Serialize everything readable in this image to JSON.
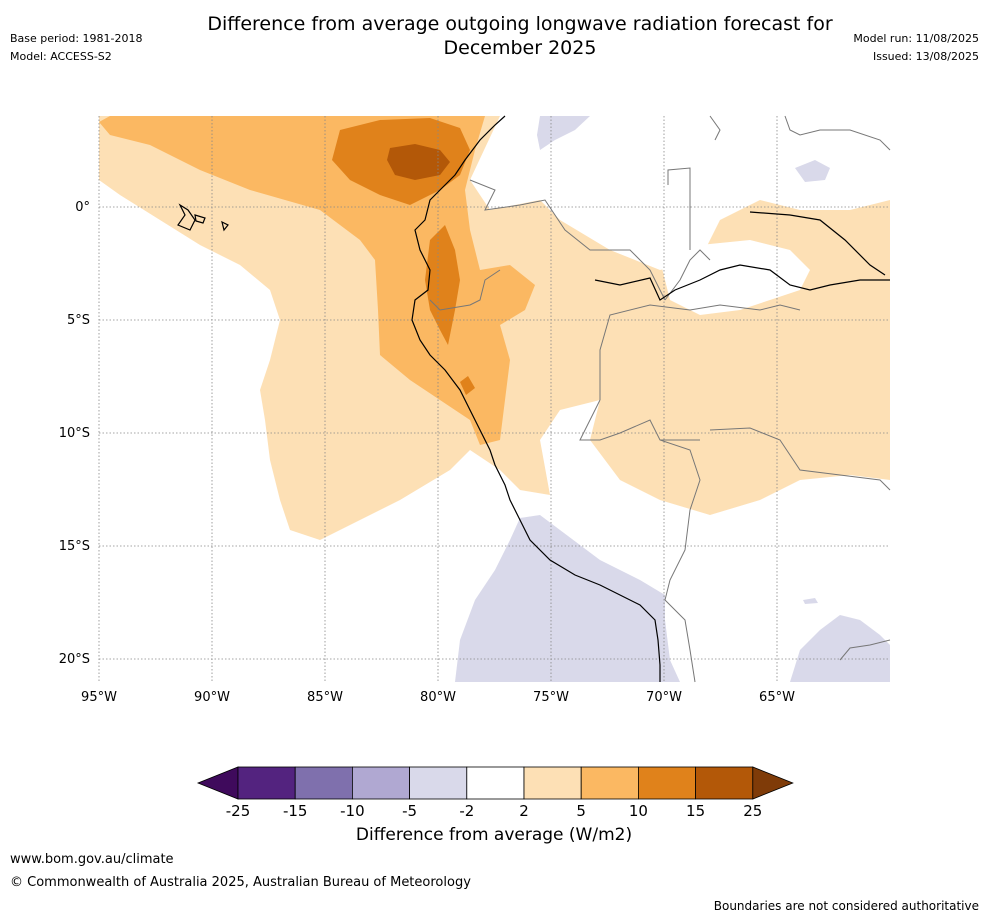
{
  "title": "Difference from average outgoing longwave radiation forecast for December 2025",
  "meta_left": {
    "base_period": "Base period: 1981-2018",
    "model": "Model: ACCESS-S2"
  },
  "meta_right": {
    "model_run": "Model run: 11/08/2025",
    "issued": "Issued: 13/08/2025"
  },
  "map": {
    "lon_labels": [
      "95°W",
      "90°W",
      "85°W",
      "80°W",
      "75°W",
      "70°W",
      "65°W"
    ],
    "lat_labels": [
      "0°",
      "5°S",
      "10°S",
      "15°S",
      "20°S"
    ],
    "extent": {
      "lon_min": -95,
      "lon_max": -60,
      "lat_min": -21,
      "lat_max": 4
    },
    "gridlines": true
  },
  "colorbar": {
    "title": "Difference from average (W/m2)",
    "tick_labels": [
      "-25",
      "-15",
      "-10",
      "-5",
      "-2",
      "2",
      "5",
      "10",
      "15",
      "25"
    ],
    "colors": [
      "#3f0a5c",
      "#53237f",
      "#7f70ad",
      "#b0a8d2",
      "#d9d9ea",
      "#ffffff",
      "#fde0b5",
      "#fbb862",
      "#e0821b",
      "#b35808",
      "#7f3b08"
    ]
  },
  "footer": {
    "website": "www.bom.gov.au/climate",
    "copyright": "© Commonwealth of Australia 2025, Australian Bureau of Meteorology",
    "disclaimer": "Boundaries are not considered authoritative"
  }
}
